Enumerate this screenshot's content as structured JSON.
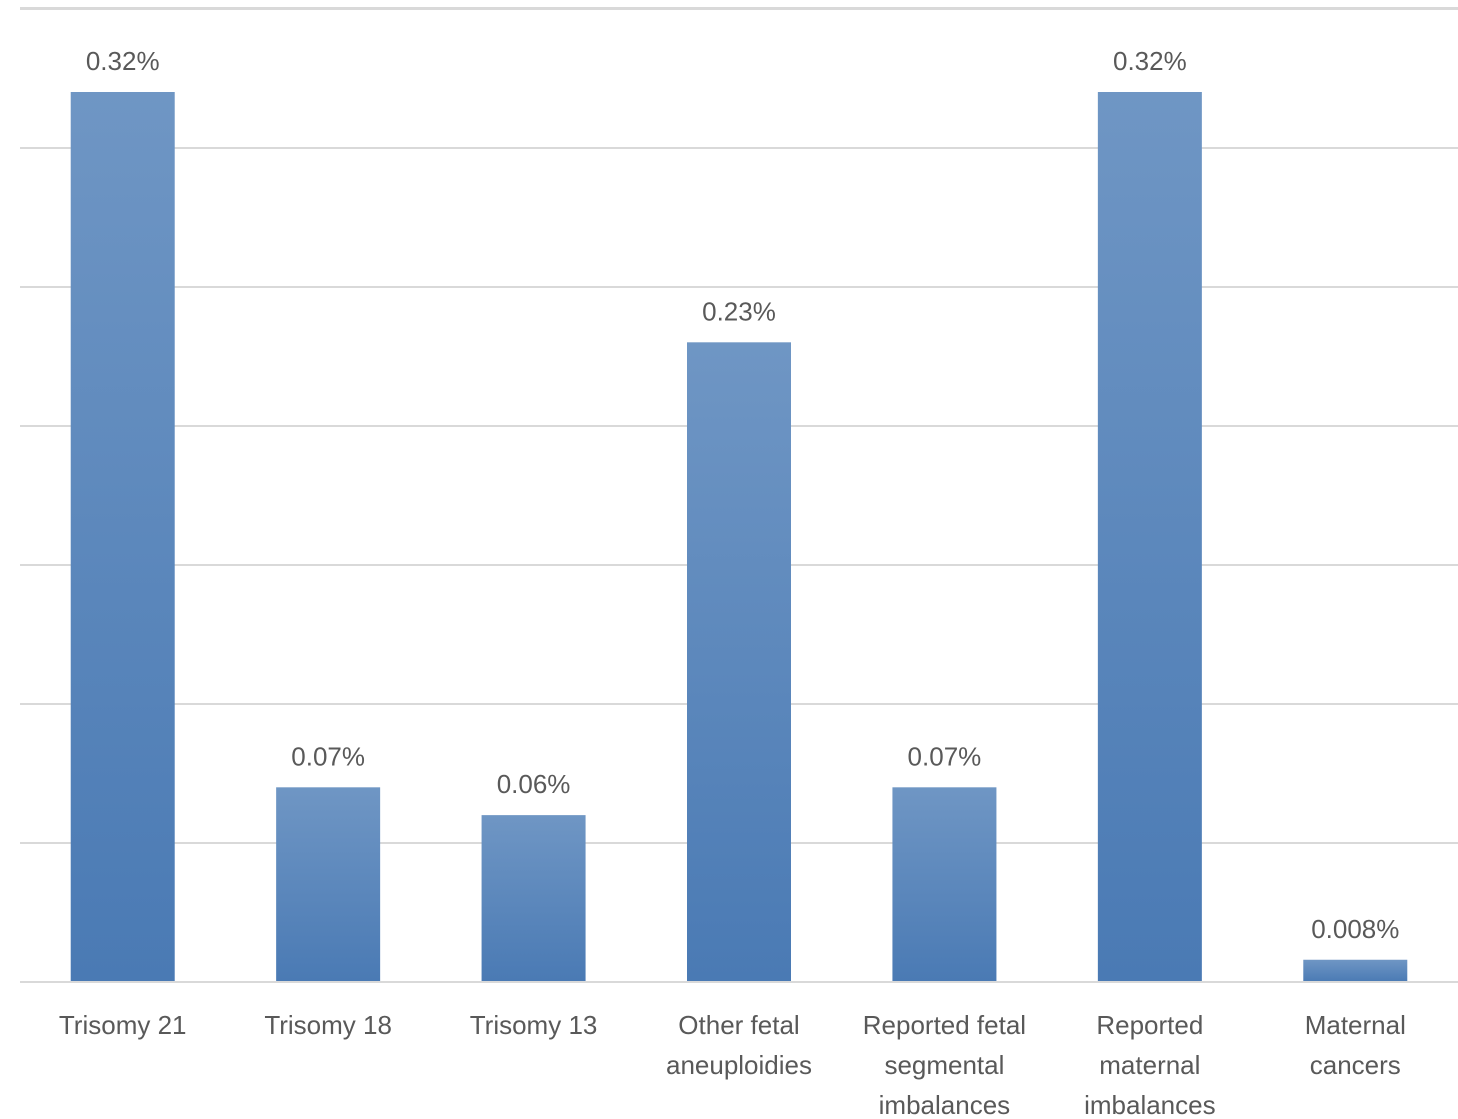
{
  "chart_data": {
    "type": "bar",
    "categories": [
      [
        "Trisomy 21"
      ],
      [
        "Trisomy 18"
      ],
      [
        "Trisomy 13"
      ],
      [
        "Other fetal",
        "aneuploidies"
      ],
      [
        "Reported fetal",
        "segmental",
        "imbalances"
      ],
      [
        "Reported",
        "maternal",
        "imbalances"
      ],
      [
        "Maternal",
        "cancers"
      ]
    ],
    "values": [
      0.32,
      0.07,
      0.06,
      0.23,
      0.07,
      0.32,
      0.008
    ],
    "data_labels": [
      "0.32%",
      "0.07%",
      "0.06%",
      "0.23%",
      "0.07%",
      "0.32%",
      "0.008%"
    ],
    "unit": "%",
    "ylim": [
      0,
      0.35
    ],
    "gridline_step": 0.05,
    "grid": true,
    "bar_color_top": "#6f96c4",
    "bar_color_bottom": "#4a7ab4"
  }
}
